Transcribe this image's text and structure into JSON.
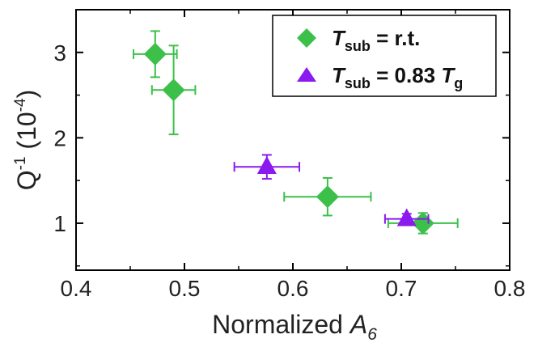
{
  "chart_data": {
    "type": "scatter",
    "xlabel": {
      "main": "Normalized ",
      "italic": "A",
      "sub": "6"
    },
    "ylabel": {
      "main": "Q",
      "sup": "-1",
      "tail": " (10",
      "tail_sup": "-4",
      "end": ")"
    },
    "xlim": [
      0.4,
      0.8
    ],
    "ylim": [
      0.45,
      3.5
    ],
    "x_ticks": [
      0.4,
      0.5,
      0.6,
      0.7,
      0.8
    ],
    "x_tick_labels": [
      "0.4",
      "0.5",
      "0.6",
      "0.7",
      "0.8"
    ],
    "y_ticks": [
      1,
      2,
      3
    ],
    "y_tick_labels": [
      "1",
      "2",
      "3"
    ],
    "grid": false,
    "legend_position": "top-right",
    "series": [
      {
        "name": "T_sub = r.t.",
        "legend": {
          "italic": "T",
          "sub": "sub",
          "rest": " = r.t.",
          "italic2": "",
          "sub2": ""
        },
        "marker": "diamond",
        "color": "#3cc04a",
        "points": [
          {
            "x": 0.473,
            "y": 2.98,
            "xerr": 0.02,
            "yerr": 0.27
          },
          {
            "x": 0.49,
            "y": 2.56,
            "xerr": 0.02,
            "yerr": 0.52
          },
          {
            "x": 0.632,
            "y": 1.31,
            "xerr": 0.04,
            "yerr": 0.22
          },
          {
            "x": 0.72,
            "y": 1.0,
            "xerr": 0.032,
            "yerr": 0.12
          }
        ]
      },
      {
        "name": "T_sub = 0.83 T_g",
        "legend": {
          "italic": "T",
          "sub": "sub",
          "rest": " = 0.83 ",
          "italic2": "T",
          "sub2": "g"
        },
        "marker": "triangle",
        "color": "#8a1aee",
        "points": [
          {
            "x": 0.576,
            "y": 1.66,
            "xerr": 0.03,
            "yerr": 0.14
          },
          {
            "x": 0.705,
            "y": 1.05,
            "xerr": 0.02,
            "yerr": 0.06
          }
        ]
      }
    ]
  }
}
